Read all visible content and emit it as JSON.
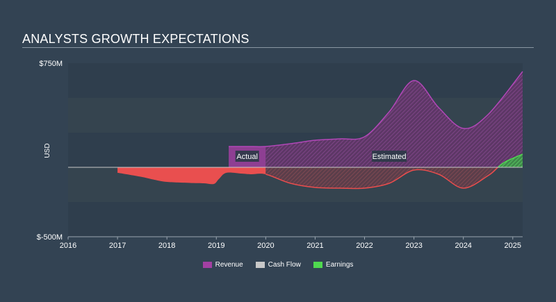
{
  "title": "ANALYSTS GROWTH EXPECTATIONS",
  "chart_data": {
    "type": "area",
    "title": "ANALYSTS GROWTH EXPECTATIONS",
    "xlabel": "",
    "ylabel": "USD",
    "xlim": [
      2016,
      2025.2
    ],
    "ylim": [
      -500,
      750
    ],
    "ytick_labels": [
      "$750M",
      "$-500M"
    ],
    "x_ticks": [
      2016,
      2017,
      2018,
      2019,
      2020,
      2021,
      2022,
      2023,
      2024,
      2025
    ],
    "actual_label": "Actual",
    "estimated_label": "Estimated",
    "actual_range": [
      2019.25,
      2020
    ],
    "grid": true,
    "legend_position": "bottom",
    "series": [
      {
        "name": "Revenue",
        "color": "#a340a3",
        "x": [
          2019.25,
          2019.5,
          2019.75,
          2020,
          2020.5,
          2021,
          2021.5,
          2022,
          2022.5,
          2023,
          2023.5,
          2024,
          2024.5,
          2025.2
        ],
        "values": [
          150,
          150,
          150,
          150,
          170,
          195,
          205,
          220,
          400,
          625,
          430,
          280,
          380,
          690
        ]
      },
      {
        "name": "Cash Flow",
        "color": "#c8c8c8",
        "x": [
          2016,
          2017,
          2018,
          2019,
          2020,
          2021,
          2022,
          2023,
          2024,
          2025.2
        ],
        "values": [
          0,
          0,
          0,
          0,
          0,
          0,
          0,
          0,
          0,
          0
        ]
      },
      {
        "name": "Earnings",
        "color": "#ea4d4d",
        "legend_color": "#4fd84f",
        "x": [
          2017,
          2017.1,
          2017.5,
          2017.75,
          2018,
          2018.5,
          2018.75,
          2018.95,
          2019.05,
          2019.2,
          2019.5,
          2019.7,
          2020,
          2020.5,
          2021,
          2021.5,
          2022,
          2022.5,
          2023,
          2023.5,
          2024,
          2024.5,
          2024.7,
          2024.85,
          2025.2
        ],
        "values": [
          -40,
          -45,
          -70,
          -90,
          -105,
          -113,
          -115,
          -120,
          -85,
          -40,
          -45,
          -50,
          -50,
          -115,
          -145,
          -150,
          -150,
          -115,
          -20,
          -50,
          -150,
          -60,
          0,
          40,
          95
        ]
      }
    ]
  },
  "legend": [
    {
      "label": "Revenue",
      "color": "#a340a3"
    },
    {
      "label": "Cash Flow",
      "color": "#c8c8c8"
    },
    {
      "label": "Earnings",
      "color": "#4fd84f"
    }
  ]
}
